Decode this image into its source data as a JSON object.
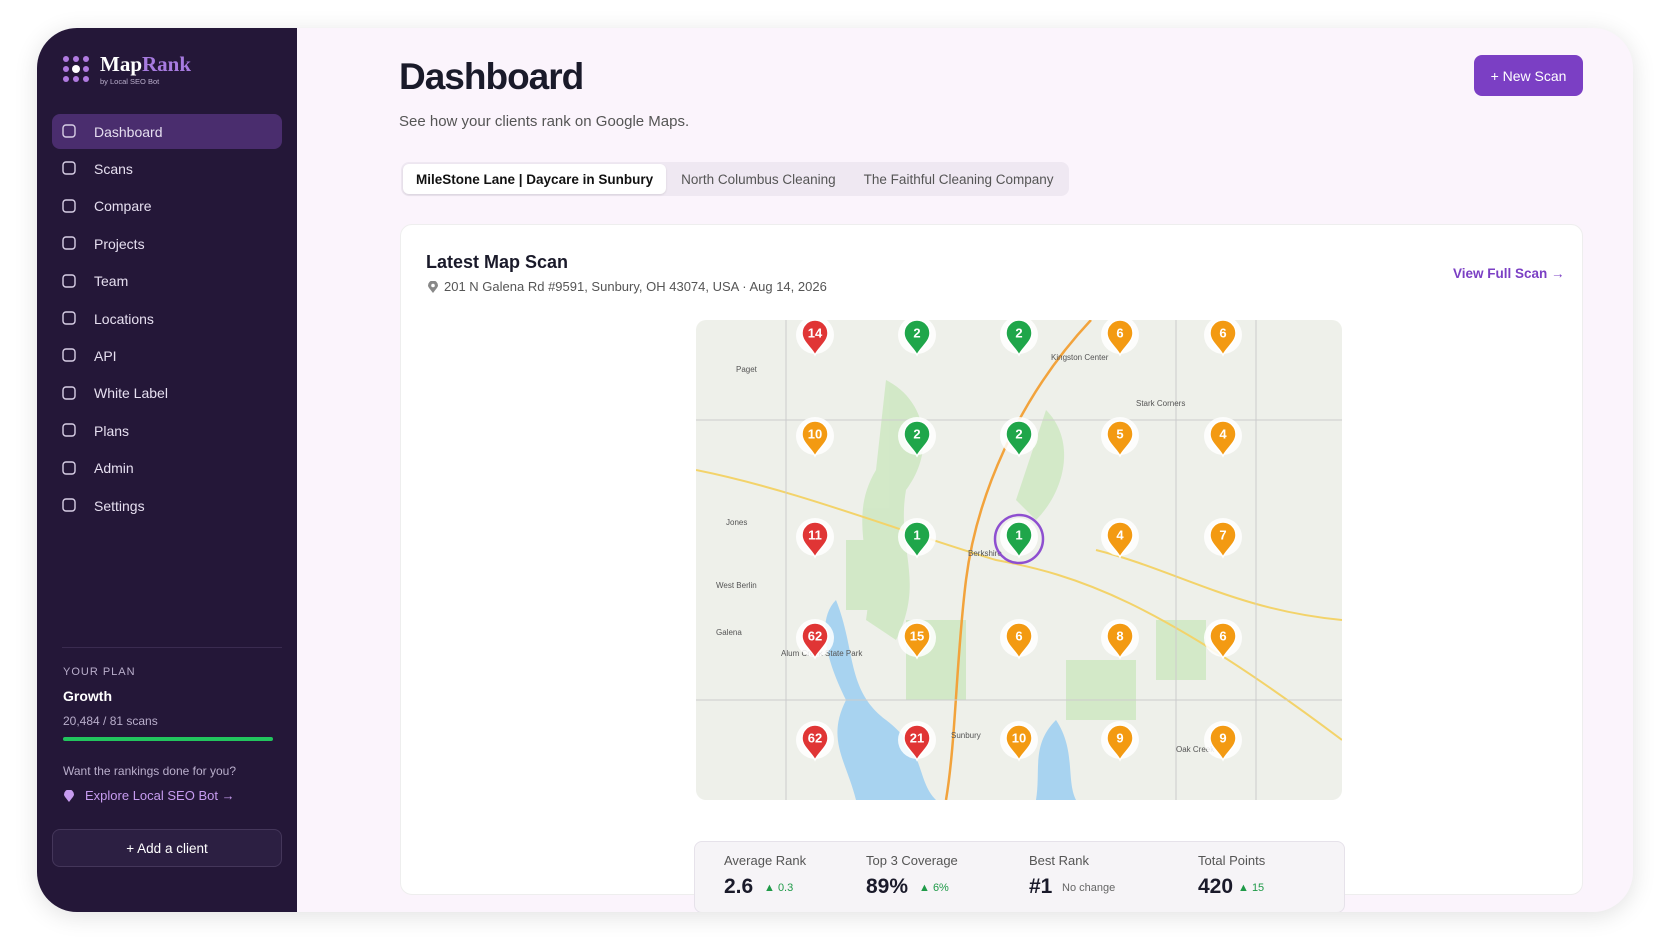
{
  "brand": {
    "name_a": "Map",
    "name_b": "Rank",
    "tagline": "by Local SEO Bot"
  },
  "nav": {
    "items": [
      "Dashboard",
      "Scans",
      "Compare",
      "Projects",
      "Team",
      "Locations",
      "API",
      "White Label",
      "Plans",
      "Admin",
      "Settings"
    ]
  },
  "plan": {
    "label": "YOUR PLAN",
    "name": "Growth",
    "usage": "20,484 / 81 scans",
    "promo": "Want the rankings done for you?",
    "link": "Explore Local SEO Bot →"
  },
  "add_client": "+ Add a client",
  "header": {
    "title": "Dashboard",
    "subtitle": "See how your clients rank on Google Maps.",
    "button": "+ New Scan"
  },
  "tabs": [
    "MileStone Lane | Daycare in Sunbury",
    "North Columbus Cleaning",
    "The Faithful Cleaning Company"
  ],
  "scan": {
    "title": "Latest Map Scan",
    "address": "201 N Galena Rd #9591, Sunbury, OH 43074, USA · Aug 14, 2026",
    "link": "View Full Scan →",
    "places": [
      "Paget",
      "Kingston Center",
      "Stark Corners",
      "Jones",
      "West Berlin",
      "Berkshire",
      "Sunbury",
      "Alum Creek State Park",
      "Galena",
      "Oak Creek"
    ],
    "grid": [
      [
        {
          "rank": "14",
          "color": "#e03535"
        },
        {
          "rank": "2",
          "color": "#1fa64a"
        },
        {
          "rank": "2",
          "color": "#1fa64a"
        },
        {
          "rank": "6",
          "color": "#f39a12"
        },
        {
          "rank": "6",
          "color": "#f39a12"
        }
      ],
      [
        {
          "rank": "10",
          "color": "#f39a12"
        },
        {
          "rank": "2",
          "color": "#1fa64a"
        },
        {
          "rank": "2",
          "color": "#1fa64a"
        },
        {
          "rank": "5",
          "color": "#f39a12"
        },
        {
          "rank": "4",
          "color": "#f39a12"
        }
      ],
      [
        {
          "rank": "11",
          "color": "#e03535"
        },
        {
          "rank": "1",
          "color": "#1fa64a"
        },
        {
          "rank": "1",
          "color": "#1fa64a"
        },
        {
          "rank": "4",
          "color": "#f39a12"
        },
        {
          "rank": "7",
          "color": "#f39a12"
        }
      ],
      [
        {
          "rank": "62",
          "color": "#e03535"
        },
        {
          "rank": "15",
          "color": "#f39a12"
        },
        {
          "rank": "6",
          "color": "#f39a12"
        },
        {
          "rank": "8",
          "color": "#f39a12"
        },
        {
          "rank": "6",
          "color": "#f39a12"
        }
      ],
      [
        {
          "rank": "62",
          "color": "#e03535"
        },
        {
          "rank": "21",
          "color": "#e03535"
        },
        {
          "rank": "10",
          "color": "#f39a12"
        },
        {
          "rank": "9",
          "color": "#f39a12"
        },
        {
          "rank": "9",
          "color": "#f39a12"
        }
      ]
    ]
  },
  "stats": [
    {
      "label": "Average Rank",
      "value": "2.6",
      "change": "▲ 0.3"
    },
    {
      "label": "Top 3 Coverage",
      "value": "89%",
      "change": "▲ 6%"
    },
    {
      "label": "Best Rank",
      "value": "#1",
      "change": "No change"
    },
    {
      "label": "Total Points",
      "value": "420",
      "change": "▲ 15"
    }
  ]
}
